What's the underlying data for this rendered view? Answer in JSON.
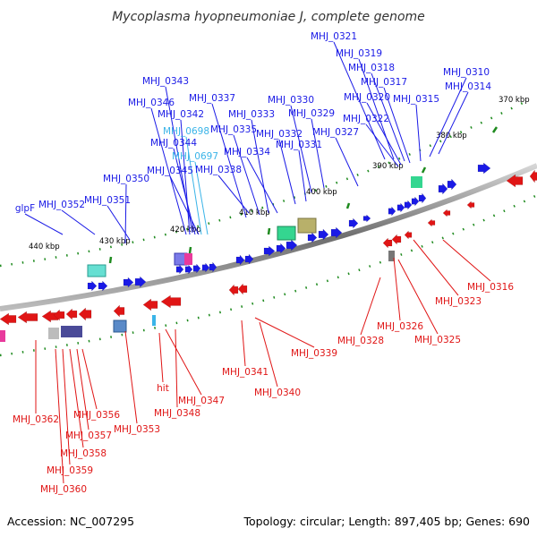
{
  "title": "Mycoplasma hyopneumoniae J, complete genome",
  "footer": {
    "accession": "Accession: NC_007295",
    "summary": "Topology: circular; Length: 897,405 bp; Genes: 690"
  },
  "colors": {
    "forward": "#1a1ae6",
    "reverse": "#e01515",
    "highlight": "#3ab4e8",
    "backbone": "#888888",
    "tick": "#1e8a1e"
  },
  "ruler_labels": [
    "370 kbp",
    "380 kbp",
    "390 kbp",
    "400 kbp",
    "410 kbp",
    "420 kbp",
    "430 kbp",
    "440 kbp"
  ],
  "forward_genes": [
    "MHJ_0321",
    "MHJ_0319",
    "MHJ_0318",
    "MHJ_0310",
    "MHJ_0317",
    "MHJ_0314",
    "MHJ_0343",
    "MHJ_0320",
    "MHJ_0315",
    "MHJ_0346",
    "MHJ_0337",
    "MHJ_0330",
    "MHJ_0342",
    "MHJ_0333",
    "MHJ_0329",
    "MHJ_0322",
    "MHJ_0698",
    "MHJ_0335",
    "MHJ_0332",
    "MHJ_0327",
    "MHJ_0344",
    "MHJ_0331",
    "MHJ_0697",
    "MHJ_0334",
    "MHJ_0345",
    "MHJ_0338",
    "MHJ_0350",
    "glpF",
    "MHJ_0352",
    "MHJ_0351"
  ],
  "highlighted_genes": [
    "MHJ_0698",
    "MHJ_0697"
  ],
  "reverse_genes": [
    "MHJ_0316",
    "MHJ_0323",
    "MHJ_0326",
    "MHJ_0328",
    "MHJ_0325",
    "MHJ_0339",
    "MHJ_0341",
    "MHJ_0340",
    "hit",
    "MHJ_0347",
    "MHJ_0348",
    "MHJ_0353",
    "MHJ_0362",
    "MHJ_0356",
    "MHJ_0357",
    "MHJ_0358",
    "MHJ_0359",
    "MHJ_0360"
  ]
}
